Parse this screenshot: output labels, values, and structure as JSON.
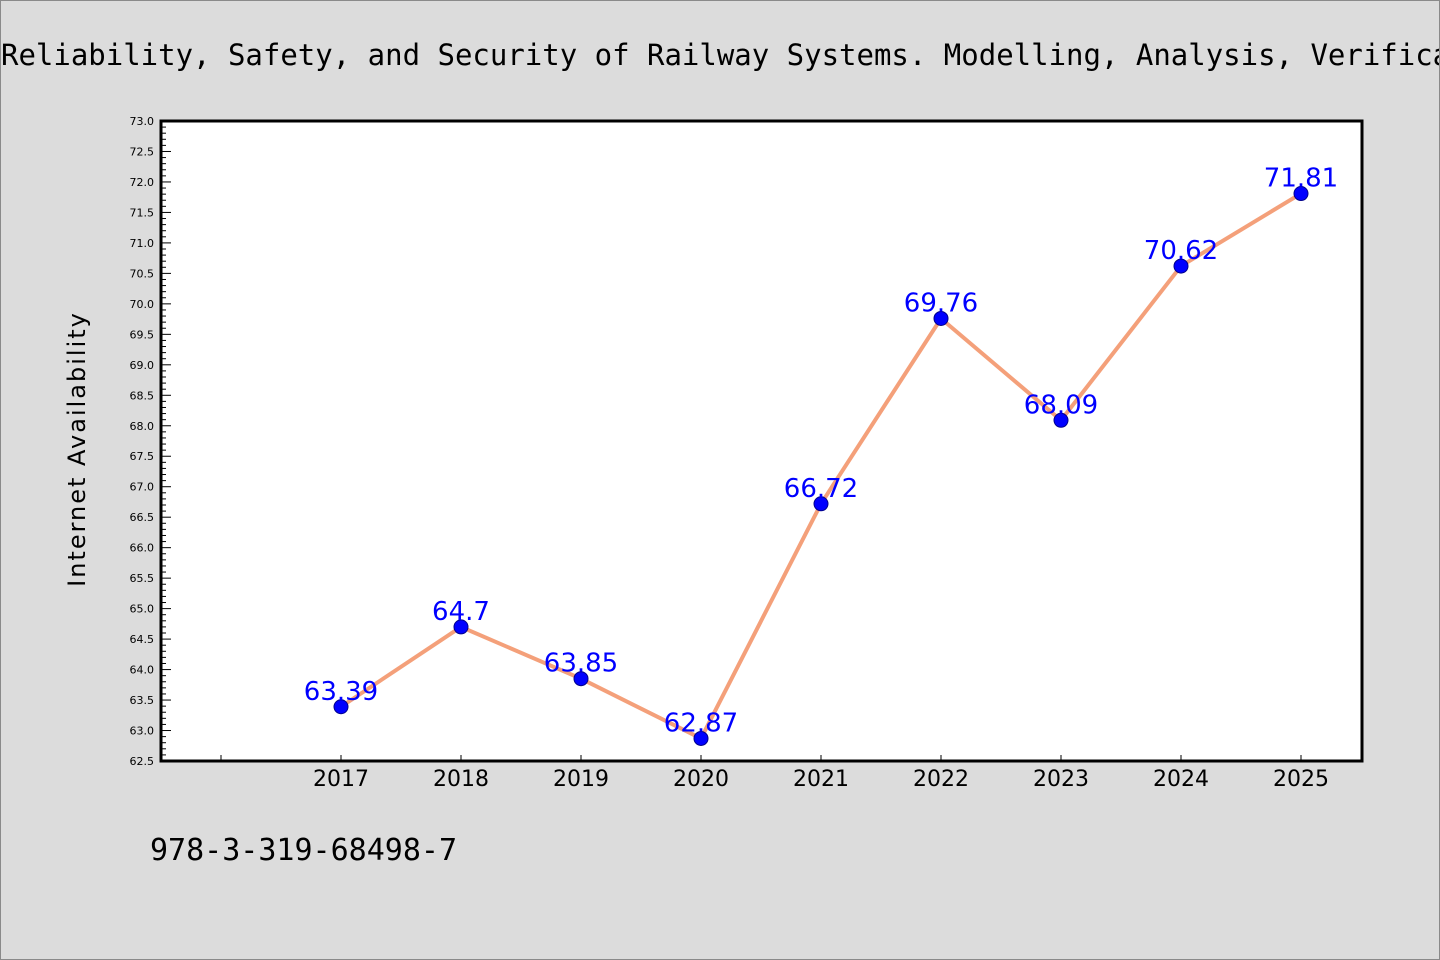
{
  "title": "Reliability, Safety, and Security of Railway Systems. Modelling, Analysis, Verification, and Certification",
  "footer": {
    "isbn": "978-3-319-68498-7"
  },
  "colors": {
    "background": "#dcdcdc",
    "plot_background": "#ffffff",
    "line": "#f4a07a",
    "marker": "#0000ff",
    "data_label": "#0000ff"
  },
  "chart_data": {
    "type": "line",
    "title": "Reliability, Safety, and Security of Railway Systems. Modelling, Analysis, Verification, and Certification",
    "xlabel": "",
    "ylabel": "Internet Availability",
    "categories": [
      "2017",
      "2018",
      "2019",
      "2020",
      "2021",
      "2022",
      "2023",
      "2024",
      "2025"
    ],
    "series": [
      {
        "values": [
          63.39,
          64.7,
          63.85,
          62.87,
          66.72,
          69.76,
          68.09,
          70.62,
          71.81
        ],
        "labels": [
          "63.39",
          "64.7",
          "63.85",
          "62.87",
          "66.72",
          "69.76",
          "68.09",
          "70.62",
          "71.81"
        ]
      }
    ],
    "ylim": [
      62.5,
      73.0
    ],
    "yticks": [
      "62.5",
      "63.0",
      "63.5",
      "64.0",
      "64.5",
      "65.0",
      "65.5",
      "66.0",
      "66.5",
      "67.0",
      "67.5",
      "68.0",
      "68.5",
      "69.0",
      "69.5",
      "70.0",
      "70.5",
      "71.0",
      "71.5",
      "72.0",
      "72.5",
      "73.0"
    ],
    "grid": false,
    "legend": "none",
    "markers": "circle"
  }
}
